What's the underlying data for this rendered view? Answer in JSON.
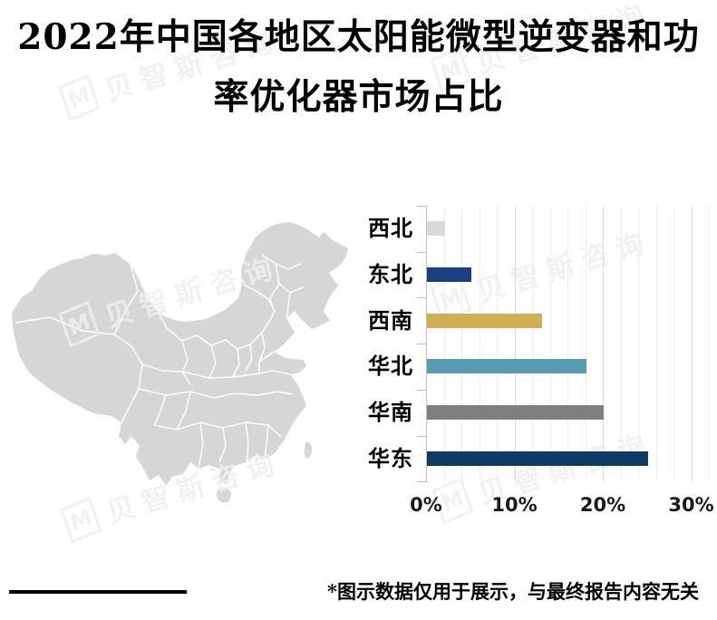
{
  "title": {
    "line1": "2022年中国各地区太阳能微型逆变器和功",
    "line2": "率优化器市场占比"
  },
  "footnote": "*图示数据仅用于展示，与最终报告内容无关",
  "watermark": {
    "logo_letter": "M",
    "text": "贝智斯咨询"
  },
  "map": {
    "fill": "#d6d6d6",
    "border_color": "#ffffff"
  },
  "chart_data": {
    "type": "bar",
    "orientation": "horizontal",
    "title": "2022年中国各地区太阳能微型逆变器和功率优化器市场占比",
    "categories": [
      "西北",
      "东北",
      "西南",
      "华北",
      "华南",
      "华东"
    ],
    "values": [
      2,
      5,
      13,
      18,
      20,
      25
    ],
    "unit": "%",
    "bar_colors": [
      "#d9d9d9",
      "#1b4080",
      "#d1ae54",
      "#5b9ab4",
      "#7f7f7f",
      "#0e3a63"
    ],
    "xlabel": "",
    "ylabel": "",
    "x_axis": {
      "tick_labels": [
        "0%",
        "10%",
        "20%",
        "30%"
      ],
      "tick_values": [
        0,
        10,
        20,
        30
      ],
      "max": 32,
      "minor_grid_step": 2,
      "major_grid_step": 10
    },
    "grid": true,
    "legend_position": "none"
  }
}
